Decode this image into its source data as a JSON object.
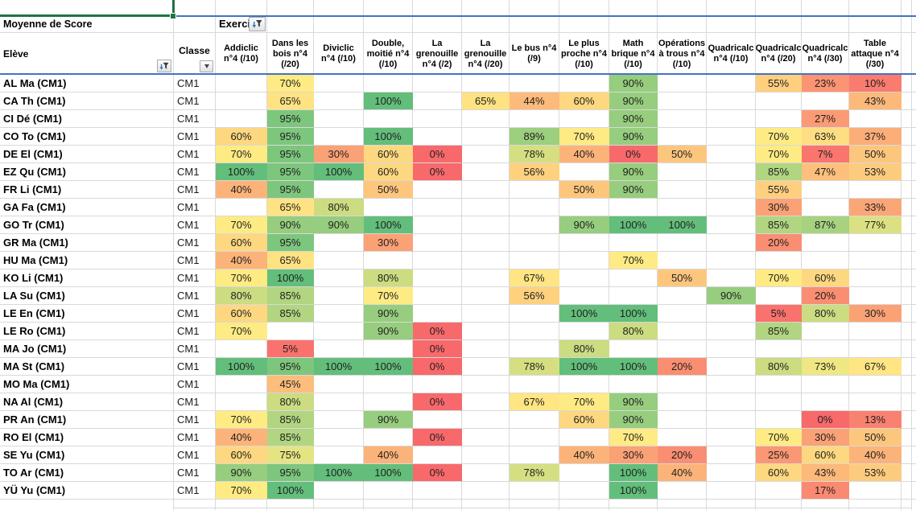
{
  "pivot": {
    "corner_label": "Moyenne de Score",
    "field_button_label": "Exerci",
    "row_field_label": "Elève",
    "class_field_label": "Classe",
    "value_suffix": "%",
    "columns": [
      "Addiclic n°4 (/10)",
      "Dans les bois n°4 (/20)",
      "Diviclic n°4 (/10)",
      "Double, moitié n°4 (/10)",
      "La grenouille n°4 (/2)",
      "La grenouille n°4 (/20)",
      "Le bus n°4 (/9)",
      "Le plus proche n°4 (/10)",
      "Math brique n°4 (/10)",
      "Opérations à trous n°4 (/10)",
      "Quadricalc n°4 (/10)",
      "Quadricalc n°4 (/20)",
      "Quadricalc n°4 (/30)",
      "Table attaque n°4 (/30)"
    ],
    "rows": [
      {
        "name": "AL Ma (CM1)",
        "classe": "CM1",
        "scores": [
          null,
          70,
          null,
          null,
          null,
          null,
          null,
          null,
          90,
          null,
          null,
          55,
          23,
          10
        ]
      },
      {
        "name": "CA Th (CM1)",
        "classe": "CM1",
        "scores": [
          null,
          65,
          null,
          100,
          null,
          65,
          44,
          60,
          90,
          null,
          null,
          null,
          null,
          43
        ]
      },
      {
        "name": "CI Dé (CM1)",
        "classe": "CM1",
        "scores": [
          null,
          95,
          null,
          null,
          null,
          null,
          null,
          null,
          90,
          null,
          null,
          null,
          27,
          null
        ]
      },
      {
        "name": "CO To (CM1)",
        "classe": "CM1",
        "scores": [
          60,
          95,
          null,
          100,
          null,
          null,
          89,
          70,
          90,
          null,
          null,
          70,
          63,
          37
        ]
      },
      {
        "name": "DE El (CM1)",
        "classe": "CM1",
        "scores": [
          70,
          95,
          30,
          60,
          0,
          null,
          78,
          40,
          0,
          50,
          null,
          70,
          7,
          50
        ]
      },
      {
        "name": "EZ Qu (CM1)",
        "classe": "CM1",
        "scores": [
          100,
          95,
          100,
          60,
          0,
          null,
          56,
          null,
          90,
          null,
          null,
          85,
          47,
          53
        ]
      },
      {
        "name": "FR Li (CM1)",
        "classe": "CM1",
        "scores": [
          40,
          95,
          null,
          50,
          null,
          null,
          null,
          50,
          90,
          null,
          null,
          55,
          null,
          null
        ]
      },
      {
        "name": "GA Fa (CM1)",
        "classe": "CM1",
        "scores": [
          null,
          65,
          80,
          null,
          null,
          null,
          null,
          null,
          null,
          null,
          null,
          30,
          null,
          33
        ]
      },
      {
        "name": "GO Tr (CM1)",
        "classe": "CM1",
        "scores": [
          70,
          90,
          90,
          100,
          null,
          null,
          null,
          90,
          100,
          100,
          null,
          85,
          87,
          77
        ]
      },
      {
        "name": "GR Ma (CM1)",
        "classe": "CM1",
        "scores": [
          60,
          95,
          null,
          30,
          null,
          null,
          null,
          null,
          null,
          null,
          null,
          20,
          null,
          null
        ]
      },
      {
        "name": "HU Ma (CM1)",
        "classe": "CM1",
        "scores": [
          40,
          65,
          null,
          null,
          null,
          null,
          null,
          null,
          70,
          null,
          null,
          null,
          null,
          null
        ]
      },
      {
        "name": "KO Li (CM1)",
        "classe": "CM1",
        "scores": [
          70,
          100,
          null,
          80,
          null,
          null,
          67,
          null,
          null,
          50,
          null,
          70,
          60,
          null
        ]
      },
      {
        "name": "LA Su (CM1)",
        "classe": "CM1",
        "scores": [
          80,
          85,
          null,
          70,
          null,
          null,
          56,
          null,
          null,
          null,
          90,
          null,
          20,
          null
        ]
      },
      {
        "name": "LE En (CM1)",
        "classe": "CM1",
        "scores": [
          60,
          85,
          null,
          90,
          null,
          null,
          null,
          100,
          100,
          null,
          null,
          5,
          80,
          30
        ]
      },
      {
        "name": "LE Ro (CM1)",
        "classe": "CM1",
        "scores": [
          70,
          null,
          null,
          90,
          0,
          null,
          null,
          null,
          80,
          null,
          null,
          85,
          null,
          null
        ]
      },
      {
        "name": "MA Jo (CM1)",
        "classe": "CM1",
        "scores": [
          null,
          5,
          null,
          null,
          0,
          null,
          null,
          80,
          null,
          null,
          null,
          null,
          null,
          null
        ]
      },
      {
        "name": "MA St (CM1)",
        "classe": "CM1",
        "scores": [
          100,
          95,
          100,
          100,
          0,
          null,
          78,
          100,
          100,
          20,
          null,
          80,
          73,
          67
        ]
      },
      {
        "name": "MO Ma (CM1)",
        "classe": "CM1",
        "scores": [
          null,
          45,
          null,
          null,
          null,
          null,
          null,
          null,
          null,
          null,
          null,
          null,
          null,
          null
        ]
      },
      {
        "name": "NA Al (CM1)",
        "classe": "CM1",
        "scores": [
          null,
          80,
          null,
          null,
          0,
          null,
          67,
          70,
          90,
          null,
          null,
          null,
          null,
          null
        ]
      },
      {
        "name": "PR An (CM1)",
        "classe": "CM1",
        "scores": [
          70,
          85,
          null,
          90,
          null,
          null,
          null,
          60,
          90,
          null,
          null,
          null,
          0,
          13
        ]
      },
      {
        "name": "RO El (CM1)",
        "classe": "CM1",
        "scores": [
          40,
          85,
          null,
          null,
          0,
          null,
          null,
          null,
          70,
          null,
          null,
          70,
          30,
          50
        ]
      },
      {
        "name": "SE Yu (CM1)",
        "classe": "CM1",
        "scores": [
          60,
          75,
          null,
          40,
          null,
          null,
          null,
          40,
          30,
          20,
          null,
          25,
          60,
          40
        ]
      },
      {
        "name": "TO Ar (CM1)",
        "classe": "CM1",
        "scores": [
          90,
          95,
          100,
          100,
          0,
          null,
          78,
          null,
          100,
          40,
          null,
          60,
          43,
          53
        ]
      },
      {
        "name": "YÜ Yu (CM1)",
        "classe": "CM1",
        "scores": [
          70,
          100,
          null,
          null,
          null,
          null,
          null,
          null,
          100,
          null,
          null,
          null,
          17,
          null
        ]
      }
    ]
  },
  "colors": {
    "scale_low": "#F8696B",
    "scale_mid": "#FFEB84",
    "scale_high": "#63BE7B",
    "scale_mid_value": 70,
    "header_border_blue": "#4472C4",
    "selection_green": "#217346",
    "gridline": "#D9D9D9"
  },
  "icons": {
    "field_filter": "funnel-filter-icon",
    "row_filter": "funnel-filter-icon",
    "class_dropdown": "chevron-down-icon"
  }
}
